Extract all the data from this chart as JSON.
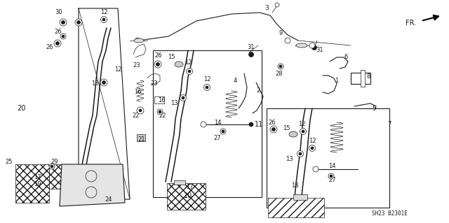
{
  "bg_color": "#ffffff",
  "fig_width": 6.4,
  "fig_height": 3.19,
  "dpi": 100,
  "diagram_code": "SH23 B2301E",
  "lc": "#1a1a1a",
  "tc": "#1a1a1a",
  "fs": 6.5,
  "fs_code": 5.5,
  "lw_thin": 0.5,
  "lw_med": 0.8,
  "lw_thick": 1.1
}
